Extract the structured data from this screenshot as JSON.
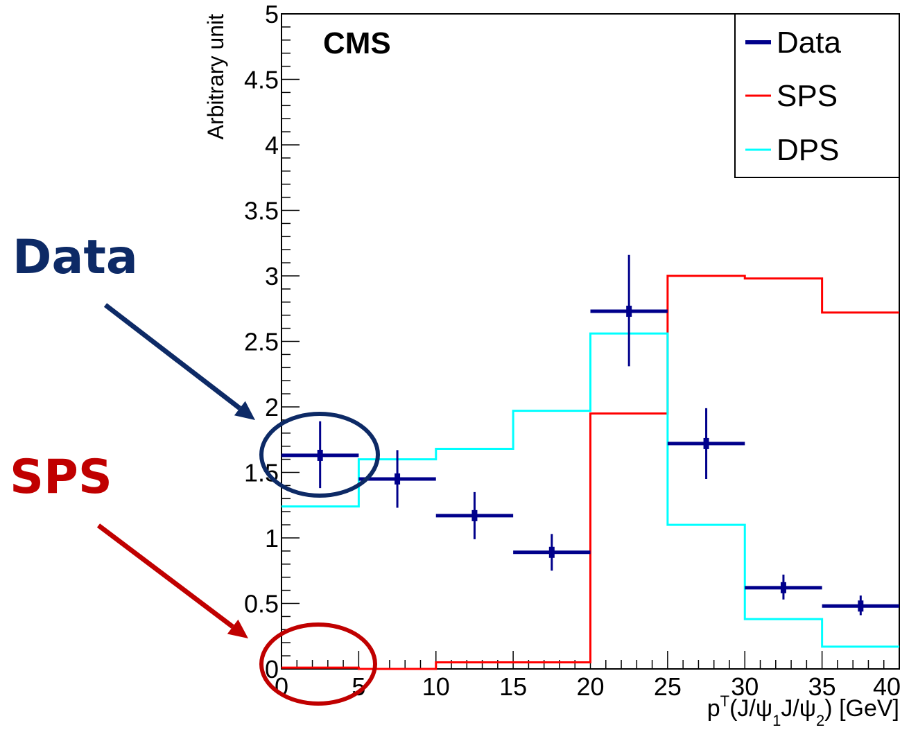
{
  "chart_data": {
    "type": "histogram",
    "title": "CMS",
    "xlabel": "p",
    "xlabel_sup": "T",
    "xlabel_rest": [
      "(J/ψ",
      "1",
      "J/ψ",
      "2",
      ") [GeV]"
    ],
    "ylabel": "Arbitrary unit",
    "xlim": [
      0,
      40
    ],
    "ylim": [
      0,
      5
    ],
    "x_ticks": [
      0,
      5,
      10,
      15,
      20,
      25,
      30,
      35,
      40
    ],
    "x_tick_labels": [
      "0",
      "5",
      "10",
      "15",
      "20",
      "25",
      "30",
      "35",
      "40"
    ],
    "y_ticks": [
      0,
      0.5,
      1,
      1.5,
      2,
      2.5,
      3,
      3.5,
      4,
      4.5,
      5
    ],
    "y_tick_labels": [
      "0",
      "0.5",
      "1",
      "1.5",
      "2",
      "2.5",
      "3",
      "3.5",
      "4",
      "4.5",
      "5"
    ],
    "bin_edges": [
      0,
      5,
      10,
      15,
      20,
      25,
      30,
      35,
      40
    ],
    "legend": {
      "placement": "top-right",
      "entries": [
        "Data",
        "SPS",
        "DPS"
      ]
    },
    "series": [
      {
        "name": "Data",
        "style": "points-with-errors",
        "color": "#00008b",
        "x": [
          2.5,
          7.5,
          12.5,
          17.5,
          22.5,
          27.5,
          32.5,
          37.5
        ],
        "values": [
          1.63,
          1.45,
          1.17,
          0.89,
          2.73,
          1.72,
          0.62,
          0.48
        ],
        "err_low": [
          0.25,
          0.22,
          0.18,
          0.14,
          0.42,
          0.27,
          0.09,
          0.07
        ],
        "err_high": [
          0.26,
          0.22,
          0.18,
          0.14,
          0.43,
          0.27,
          0.1,
          0.08
        ],
        "x_half_width": 2.5
      },
      {
        "name": "SPS",
        "style": "step",
        "color": "#ff0000",
        "values": [
          0.01,
          0.0,
          0.05,
          0.05,
          1.95,
          3.0,
          2.98,
          2.72
        ]
      },
      {
        "name": "DPS",
        "style": "step",
        "color": "#00ffff",
        "values": [
          1.24,
          1.6,
          1.68,
          1.97,
          2.56,
          1.1,
          0.38,
          0.17
        ]
      }
    ]
  },
  "annotations": {
    "data_label": "Data",
    "sps_label": "SPS",
    "data_color": "#0d2a66",
    "sps_color": "#c00000"
  }
}
